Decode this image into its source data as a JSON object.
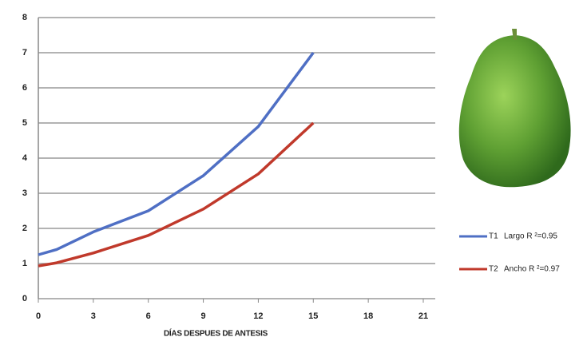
{
  "chart_data": {
    "type": "line",
    "x_label": "DÍAS DESPUES DE ANTESIS",
    "xlim": [
      0,
      21
    ],
    "xticks": [
      0,
      3,
      6,
      9,
      12,
      15,
      18,
      21
    ],
    "ylim": [
      0,
      8
    ],
    "yticks": [
      0,
      1,
      2,
      3,
      4,
      5,
      6,
      7,
      8
    ],
    "grid": true,
    "x": [
      0,
      1,
      3,
      6,
      9,
      12,
      15
    ],
    "series": [
      {
        "name": "T1",
        "label": "Largo R ²=0.95",
        "color": "#4f6fc4",
        "values": [
          1.25,
          1.4,
          1.9,
          2.5,
          3.5,
          4.9,
          7.0
        ]
      },
      {
        "name": "T2",
        "label": "Ancho R ²=0.97",
        "color": "#c0392b",
        "values": [
          0.93,
          1.02,
          1.3,
          1.8,
          2.55,
          3.55,
          5.0
        ]
      }
    ]
  }
}
